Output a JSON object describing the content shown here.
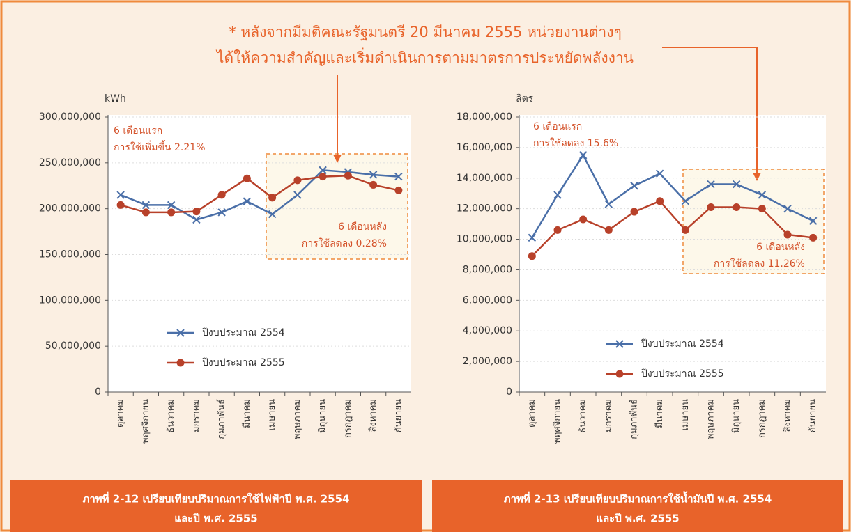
{
  "note": [
    "* หลังจากมีมติคณะรัฐมนตรี 20 มีนาคม 2555 หน่วยงานต่างๆ",
    "ได้ให้ความสำคัญและเริ่มดำเนินการตามมาตรการประหยัดพลังงาน"
  ],
  "chart_data": [
    {
      "type": "line",
      "y_label": "kWh",
      "categories": [
        "ตุลาคม",
        "พฤศจิกายน",
        "ธันวาคม",
        "มกราคม",
        "กุมภาพันธ์",
        "มีนาคม",
        "เมษายน",
        "พฤษภาคม",
        "มิถุนายน",
        "กรกฎาคม",
        "สิงหาคม",
        "กันยายน"
      ],
      "series": [
        {
          "name": "ปีงบประมาณ 2554",
          "color": "#4a6fa8",
          "marker": "x",
          "values": [
            215000000,
            204000000,
            204000000,
            188000000,
            196000000,
            208000000,
            194000000,
            215000000,
            242000000,
            240000000,
            237000000,
            235000000
          ]
        },
        {
          "name": "ปีงบประมาณ 2555",
          "color": "#b8412a",
          "marker": "circle",
          "values": [
            204000000,
            196000000,
            196000000,
            197000000,
            215000000,
            233000000,
            212000000,
            231000000,
            235000000,
            236000000,
            226000000,
            220000000
          ]
        }
      ],
      "ylim": [
        0,
        300000000
      ],
      "yticks": [
        0,
        {
          "value": 50000000,
          "label": "50,000,000"
        },
        {
          "value": 100000000,
          "label": "100,000,000"
        },
        {
          "value": 150000000,
          "label": "150,000,000"
        },
        {
          "value": 200000000,
          "label": "200,000,000"
        },
        {
          "value": 250000000,
          "label": "250,000,000"
        },
        {
          "value": 300000000,
          "label": "300,000,000"
        }
      ],
      "grid": true,
      "annotations": [
        [
          "6 เดือนแรก",
          "การใช้เพิ่มขึ้น 2.21%"
        ],
        [
          "6 เดือนหลัง",
          "การใช้ลดลง 0.28%"
        ]
      ],
      "caption": [
        "ภาพที่ 2-12 เปรียบเทียบปริมาณการใช้ไฟฟ้าปี พ.ศ. 2554",
        "และปี พ.ศ. 2555"
      ]
    },
    {
      "type": "line",
      "y_label": "ลิตร",
      "categories": [
        "ตุลาคม",
        "พฤศจิกายน",
        "ธันวาคม",
        "มกราคม",
        "กุมภาพันธ์",
        "มีนาคม",
        "เมษายน",
        "พฤษภาคม",
        "มิถุนายน",
        "กรกฎาคม",
        "สิงหาคม",
        "กันยายน"
      ],
      "series": [
        {
          "name": "ปีงบประมาณ 2554",
          "color": "#4a6fa8",
          "marker": "x",
          "values": [
            10100000,
            12900000,
            15500000,
            12300000,
            13500000,
            14300000,
            12500000,
            13600000,
            13600000,
            12900000,
            12000000,
            11200000
          ]
        },
        {
          "name": "ปีงบประมาณ 2555",
          "color": "#b8412a",
          "marker": "circle",
          "values": [
            8900000,
            10600000,
            11300000,
            10600000,
            11800000,
            12500000,
            10600000,
            12100000,
            12100000,
            12000000,
            10300000,
            10100000
          ]
        }
      ],
      "ylim": [
        0,
        18000000
      ],
      "yticks": [
        0,
        {
          "value": 2000000,
          "label": "2,000,000"
        },
        {
          "value": 4000000,
          "label": "4,000,000"
        },
        {
          "value": 6000000,
          "label": "6,000,000"
        },
        {
          "value": 8000000,
          "label": "8,000,000"
        },
        {
          "value": 10000000,
          "label": "10,000,000"
        },
        {
          "value": 12000000,
          "label": "12,000,000"
        },
        {
          "value": 14000000,
          "label": "14,000,000"
        },
        {
          "value": 16000000,
          "label": "16,000,000"
        },
        {
          "value": 18000000,
          "label": "18,000,000"
        }
      ],
      "grid": true,
      "annotations": [
        [
          "6 เดือนแรก",
          "การใช้ลดลง 15.6%"
        ],
        [
          "6 เดือนหลัง",
          "การใช้ลดลง 11.26%"
        ]
      ],
      "caption": [
        "ภาพที่ 2-13 เปรียบเทียบปริมาณการใช้น้ำมันปี พ.ศ. 2554",
        "และปี พ.ศ. 2555"
      ]
    }
  ]
}
